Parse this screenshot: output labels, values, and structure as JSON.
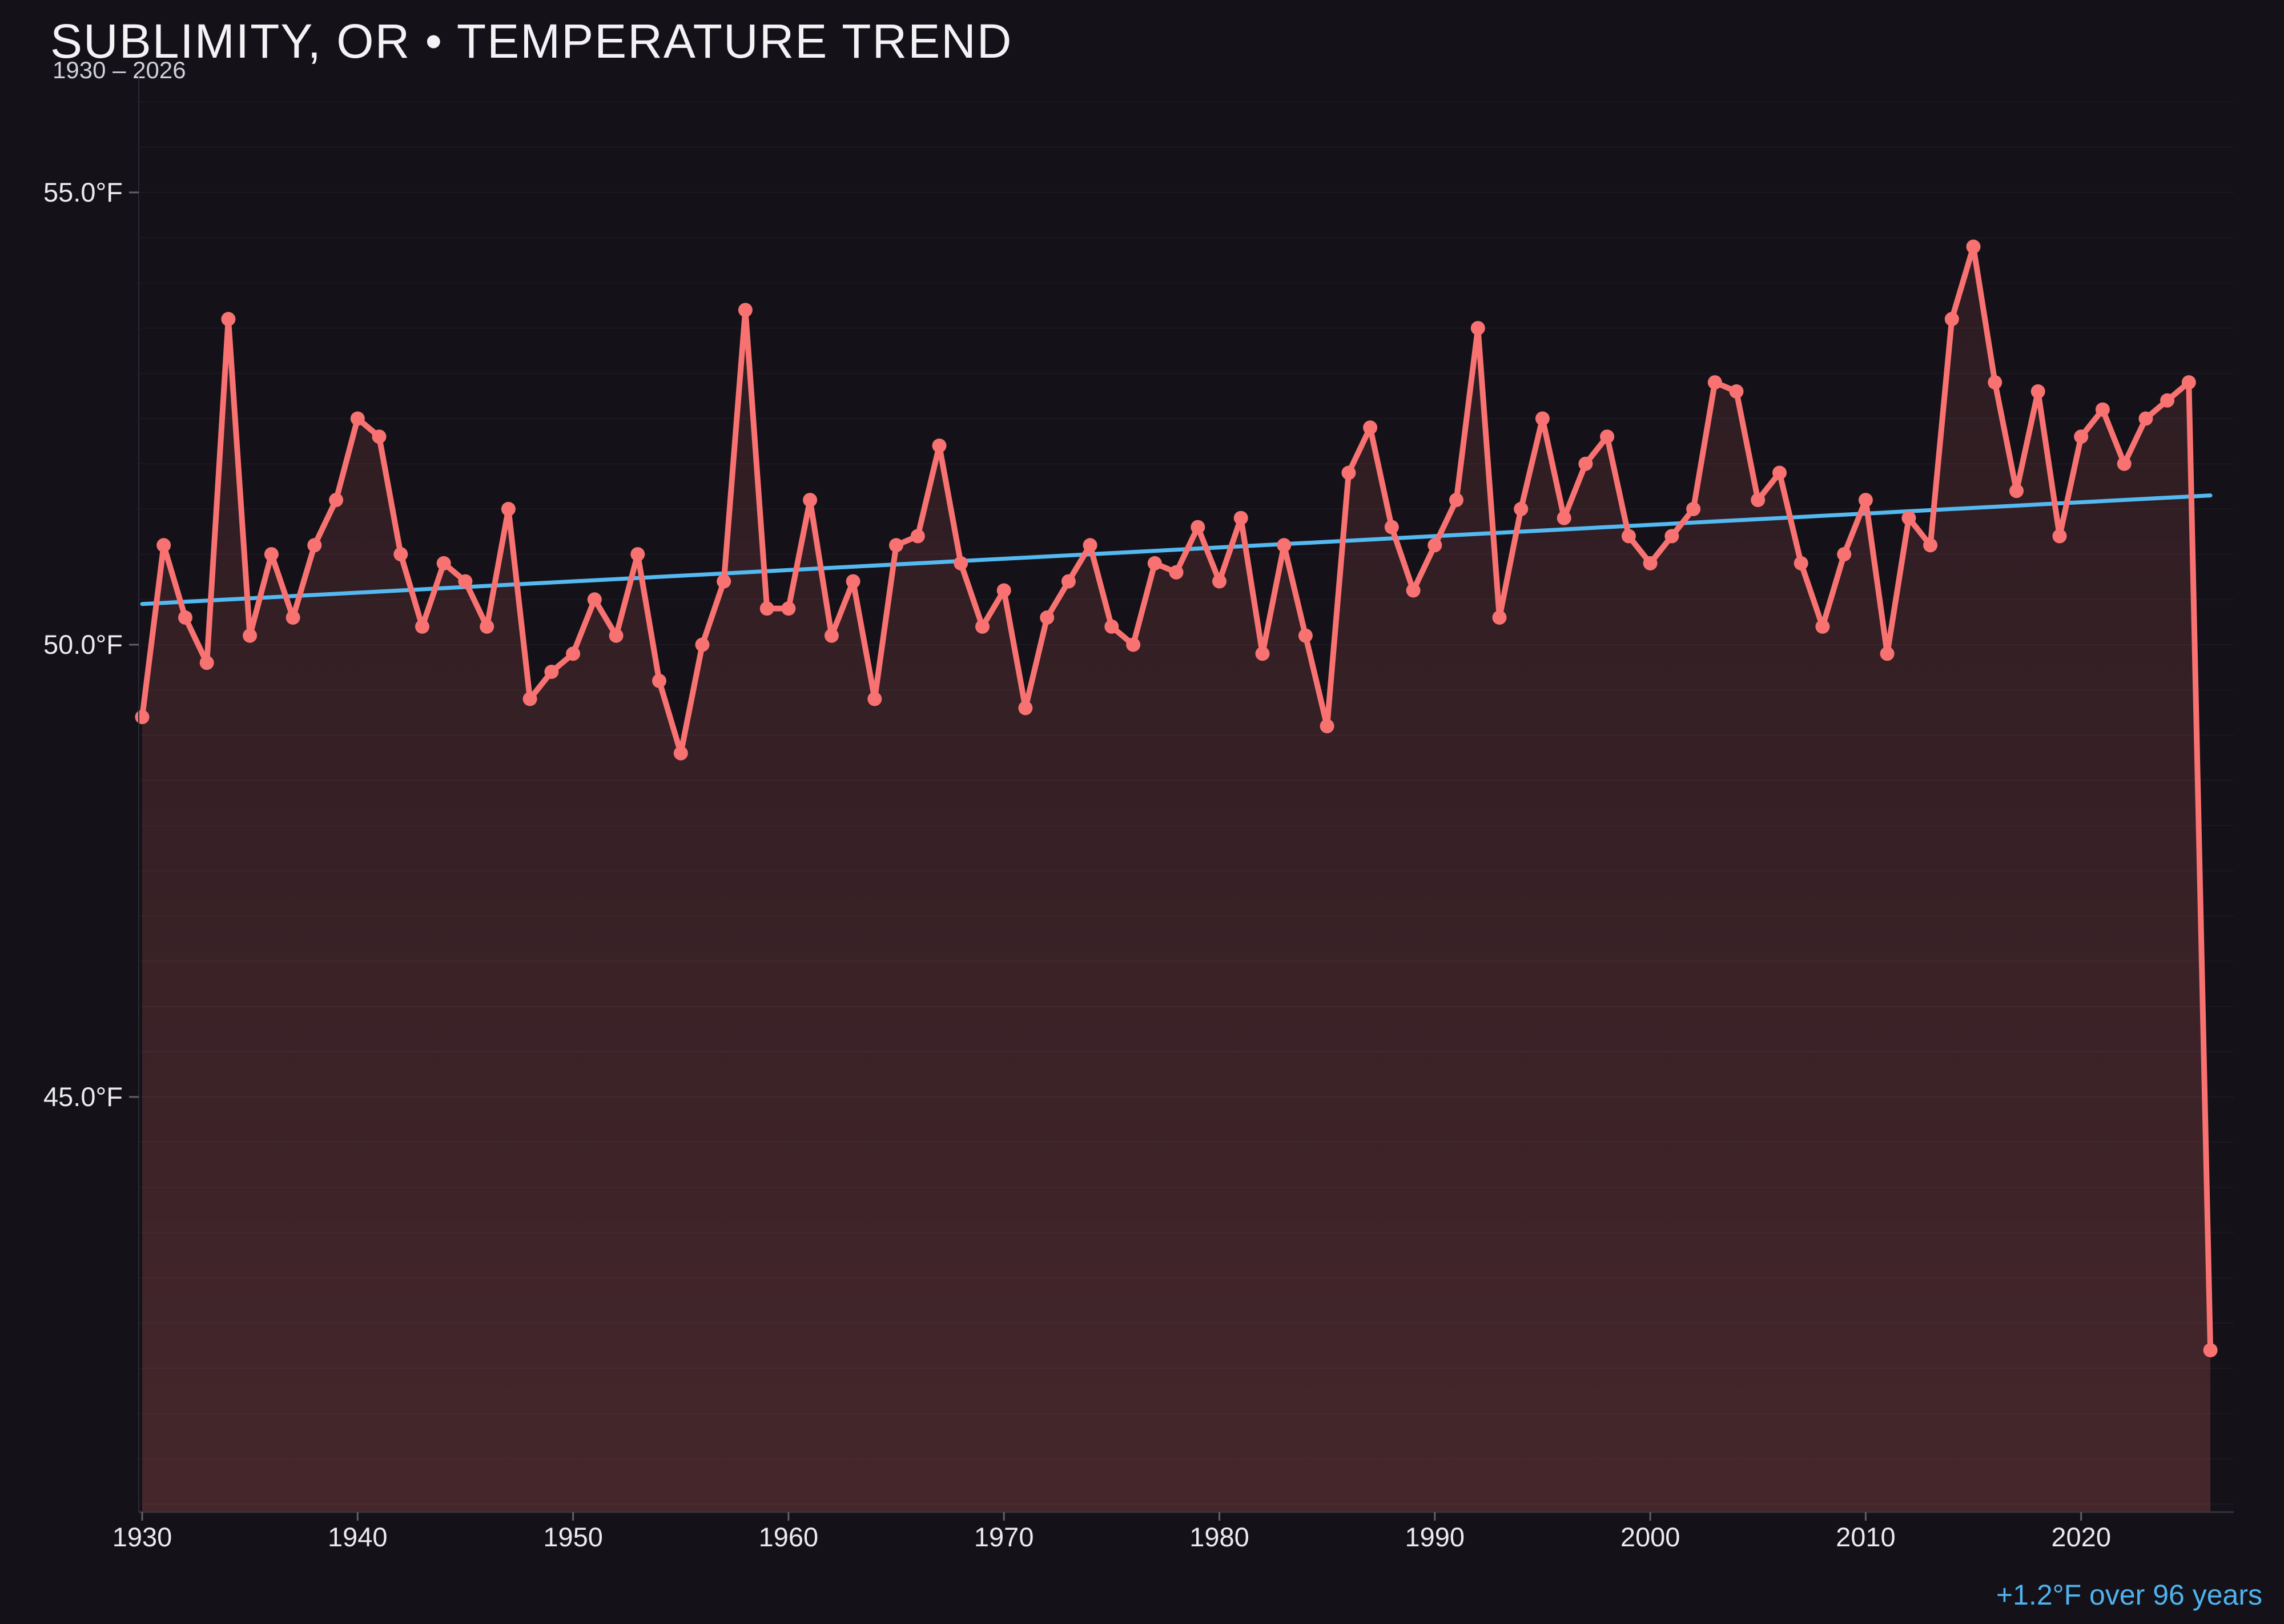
{
  "header": {
    "title": "SUBLIMITY, OR • TEMPERATURE TREND",
    "subtitle": "1930 – 2026"
  },
  "colors": {
    "background": "#141218",
    "line": "#f87272",
    "point": "#f87272",
    "fill_top": "rgba(248,114,114,0.10)",
    "fill_bottom": "rgba(248,114,114,0.21)",
    "trend": "#54b9f1",
    "annotation": "#4fb2ee",
    "title_text": "#f3f3f6",
    "subtitle_text": "#cfcfd8",
    "axis_label": "#eaeaef",
    "grid": "rgba(255,255,255,0.032)",
    "axis_line": "#34343d",
    "y_axis_line": "#2a2a33",
    "tick": "#606069"
  },
  "chart_data": {
    "type": "line",
    "title": "SUBLIMITY, OR • TEMPERATURE TREND",
    "subtitle": "1930 – 2026",
    "series_name": "annual-mean-temperature-f",
    "x_start_year": 1930,
    "x_end_year": 2026,
    "values": [
      49.2,
      51.1,
      50.3,
      49.8,
      53.6,
      50.1,
      51.0,
      50.3,
      51.1,
      51.6,
      52.5,
      52.3,
      51.0,
      50.2,
      50.9,
      50.7,
      50.2,
      51.5,
      49.4,
      49.7,
      49.9,
      50.5,
      50.1,
      51.0,
      49.6,
      48.8,
      50.0,
      50.7,
      53.7,
      50.4,
      50.4,
      51.6,
      50.1,
      50.7,
      49.4,
      51.1,
      51.2,
      52.2,
      50.9,
      50.2,
      50.6,
      49.3,
      50.3,
      50.7,
      51.1,
      50.2,
      50.0,
      50.9,
      50.8,
      51.3,
      50.7,
      51.4,
      49.9,
      51.1,
      50.1,
      49.1,
      51.9,
      52.4,
      51.3,
      50.6,
      51.1,
      51.6,
      53.5,
      50.3,
      51.5,
      52.5,
      51.4,
      52.0,
      52.3,
      51.2,
      50.9,
      51.2,
      51.5,
      52.9,
      52.8,
      51.6,
      51.9,
      50.9,
      50.2,
      51.0,
      51.6,
      49.9,
      51.4,
      51.1,
      53.6,
      54.4,
      52.9,
      51.7,
      52.8,
      51.2,
      52.3,
      52.6,
      52.0,
      52.5,
      52.7,
      52.9,
      42.2
    ],
    "trendline": {
      "start_year": 1930,
      "end_year": 2026,
      "start_value": 50.45,
      "end_value": 51.65,
      "label": "+1.2°F over 96 years"
    },
    "y_ticks": [
      {
        "value": 55,
        "label": "55.0°F"
      },
      {
        "value": 50,
        "label": "50.0°F"
      },
      {
        "value": 45,
        "label": "45.0°F"
      }
    ],
    "x_ticks": [
      {
        "value": 1930,
        "label": "1930"
      },
      {
        "value": 1940,
        "label": "1940"
      },
      {
        "value": 1950,
        "label": "1950"
      },
      {
        "value": 1960,
        "label": "1960"
      },
      {
        "value": 1970,
        "label": "1970"
      },
      {
        "value": 1980,
        "label": "1980"
      },
      {
        "value": 1990,
        "label": "1990"
      },
      {
        "value": 2000,
        "label": "2000"
      },
      {
        "value": 2010,
        "label": "2010"
      },
      {
        "value": 2020,
        "label": "2020"
      }
    ],
    "grid": {
      "step_deg_f": 0.5,
      "top_value": 56.0,
      "bottom_value": 40.5
    },
    "ylim": [
      40.4,
      56.0
    ],
    "legend_position": "none"
  }
}
